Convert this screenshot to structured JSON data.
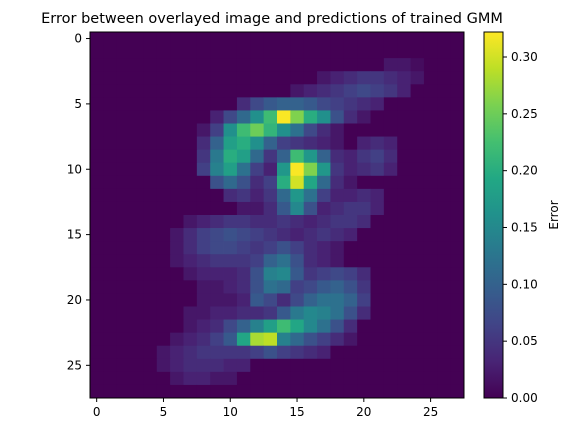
{
  "chart_data": {
    "type": "heatmap",
    "title": "Error between overlayed image and predictions of trained GMM",
    "xlabel": "",
    "ylabel": "",
    "colorbar_label": "Error",
    "colormap": "viridis",
    "grid": false,
    "rows": 28,
    "cols": 28,
    "x_ticks": [
      0,
      5,
      10,
      15,
      20,
      25
    ],
    "y_ticks": [
      0,
      5,
      10,
      15,
      20,
      25
    ],
    "colorbar_ticks": [
      "0.00",
      "0.05",
      "0.10",
      "0.15",
      "0.20",
      "0.25",
      "0.30"
    ],
    "vmin": 0.0,
    "vmax": 0.322,
    "background_value": 0.0,
    "cells": [
      [
        2,
        22,
        0.02
      ],
      [
        2,
        23,
        0.02
      ],
      [
        2,
        24,
        0.01
      ],
      [
        3,
        17,
        0.02
      ],
      [
        3,
        18,
        0.03
      ],
      [
        3,
        19,
        0.04
      ],
      [
        3,
        20,
        0.05
      ],
      [
        3,
        21,
        0.05
      ],
      [
        3,
        22,
        0.04
      ],
      [
        3,
        23,
        0.03
      ],
      [
        3,
        24,
        0.02
      ],
      [
        4,
        15,
        0.02
      ],
      [
        4,
        16,
        0.03
      ],
      [
        4,
        17,
        0.04
      ],
      [
        4,
        18,
        0.05
      ],
      [
        4,
        19,
        0.06
      ],
      [
        4,
        20,
        0.07
      ],
      [
        4,
        21,
        0.06
      ],
      [
        4,
        22,
        0.05
      ],
      [
        4,
        23,
        0.03
      ],
      [
        5,
        11,
        0.04
      ],
      [
        5,
        12,
        0.07
      ],
      [
        5,
        13,
        0.09
      ],
      [
        5,
        14,
        0.1
      ],
      [
        5,
        15,
        0.1
      ],
      [
        5,
        16,
        0.09
      ],
      [
        5,
        17,
        0.07
      ],
      [
        5,
        18,
        0.06
      ],
      [
        5,
        19,
        0.05
      ],
      [
        5,
        20,
        0.04
      ],
      [
        5,
        21,
        0.03
      ],
      [
        6,
        9,
        0.03
      ],
      [
        6,
        10,
        0.07
      ],
      [
        6,
        11,
        0.11
      ],
      [
        6,
        12,
        0.16
      ],
      [
        6,
        13,
        0.22
      ],
      [
        6,
        14,
        0.32
      ],
      [
        6,
        15,
        0.26
      ],
      [
        6,
        16,
        0.2
      ],
      [
        6,
        17,
        0.16
      ],
      [
        6,
        18,
        0.08
      ],
      [
        6,
        19,
        0.04
      ],
      [
        6,
        20,
        0.02
      ],
      [
        7,
        8,
        0.02
      ],
      [
        7,
        9,
        0.06
      ],
      [
        7,
        10,
        0.16
      ],
      [
        7,
        11,
        0.22
      ],
      [
        7,
        12,
        0.25
      ],
      [
        7,
        13,
        0.21
      ],
      [
        7,
        14,
        0.16
      ],
      [
        7,
        15,
        0.12
      ],
      [
        7,
        16,
        0.07
      ],
      [
        7,
        17,
        0.04
      ],
      [
        7,
        18,
        0.02
      ],
      [
        8,
        8,
        0.04
      ],
      [
        8,
        9,
        0.1
      ],
      [
        8,
        10,
        0.18
      ],
      [
        8,
        11,
        0.2
      ],
      [
        8,
        12,
        0.16
      ],
      [
        8,
        13,
        0.1
      ],
      [
        8,
        14,
        0.06
      ],
      [
        8,
        15,
        0.05
      ],
      [
        8,
        16,
        0.04
      ],
      [
        8,
        17,
        0.03
      ],
      [
        8,
        18,
        0.02
      ],
      [
        8,
        20,
        0.03
      ],
      [
        8,
        21,
        0.04
      ],
      [
        8,
        22,
        0.03
      ],
      [
        9,
        8,
        0.05
      ],
      [
        9,
        9,
        0.13
      ],
      [
        9,
        10,
        0.2
      ],
      [
        9,
        11,
        0.18
      ],
      [
        9,
        12,
        0.11
      ],
      [
        9,
        13,
        0.05
      ],
      [
        9,
        14,
        0.1
      ],
      [
        9,
        15,
        0.22
      ],
      [
        9,
        16,
        0.17
      ],
      [
        9,
        17,
        0.1
      ],
      [
        9,
        18,
        0.04
      ],
      [
        9,
        19,
        0.03
      ],
      [
        9,
        20,
        0.05
      ],
      [
        9,
        21,
        0.06
      ],
      [
        9,
        22,
        0.04
      ],
      [
        10,
        8,
        0.06
      ],
      [
        10,
        9,
        0.14
      ],
      [
        10,
        10,
        0.18
      ],
      [
        10,
        11,
        0.12
      ],
      [
        10,
        12,
        0.06
      ],
      [
        10,
        13,
        0.03
      ],
      [
        10,
        14,
        0.17
      ],
      [
        10,
        15,
        0.32
      ],
      [
        10,
        16,
        0.26
      ],
      [
        10,
        17,
        0.17
      ],
      [
        10,
        18,
        0.05
      ],
      [
        10,
        19,
        0.03
      ],
      [
        10,
        20,
        0.04
      ],
      [
        10,
        21,
        0.05
      ],
      [
        10,
        22,
        0.03
      ],
      [
        11,
        9,
        0.08
      ],
      [
        11,
        10,
        0.11
      ],
      [
        11,
        11,
        0.08
      ],
      [
        11,
        12,
        0.04
      ],
      [
        11,
        13,
        0.06
      ],
      [
        11,
        14,
        0.2
      ],
      [
        11,
        15,
        0.3
      ],
      [
        11,
        16,
        0.19
      ],
      [
        11,
        17,
        0.11
      ],
      [
        11,
        18,
        0.04
      ],
      [
        11,
        19,
        0.02
      ],
      [
        12,
        10,
        0.04
      ],
      [
        12,
        11,
        0.05
      ],
      [
        12,
        12,
        0.03
      ],
      [
        12,
        13,
        0.05
      ],
      [
        12,
        14,
        0.11
      ],
      [
        12,
        15,
        0.17
      ],
      [
        12,
        16,
        0.12
      ],
      [
        12,
        17,
        0.06
      ],
      [
        12,
        18,
        0.03
      ],
      [
        12,
        19,
        0.03
      ],
      [
        12,
        20,
        0.04
      ],
      [
        12,
        21,
        0.03
      ],
      [
        13,
        11,
        0.02
      ],
      [
        13,
        12,
        0.02
      ],
      [
        13,
        13,
        0.04
      ],
      [
        13,
        14,
        0.09
      ],
      [
        13,
        15,
        0.15
      ],
      [
        13,
        16,
        0.08
      ],
      [
        13,
        17,
        0.03
      ],
      [
        13,
        18,
        0.04
      ],
      [
        13,
        19,
        0.05
      ],
      [
        13,
        20,
        0.05
      ],
      [
        13,
        21,
        0.03
      ],
      [
        14,
        7,
        0.02
      ],
      [
        14,
        8,
        0.03
      ],
      [
        14,
        9,
        0.04
      ],
      [
        14,
        10,
        0.05
      ],
      [
        14,
        11,
        0.05
      ],
      [
        14,
        12,
        0.04
      ],
      [
        14,
        13,
        0.04
      ],
      [
        14,
        14,
        0.05
      ],
      [
        14,
        15,
        0.04
      ],
      [
        14,
        16,
        0.03
      ],
      [
        14,
        17,
        0.04
      ],
      [
        14,
        18,
        0.05
      ],
      [
        14,
        19,
        0.05
      ],
      [
        14,
        20,
        0.04
      ],
      [
        15,
        6,
        0.02
      ],
      [
        15,
        7,
        0.04
      ],
      [
        15,
        8,
        0.06
      ],
      [
        15,
        9,
        0.07
      ],
      [
        15,
        10,
        0.08
      ],
      [
        15,
        11,
        0.07
      ],
      [
        15,
        12,
        0.06
      ],
      [
        15,
        13,
        0.05
      ],
      [
        15,
        14,
        0.04
      ],
      [
        15,
        15,
        0.03
      ],
      [
        15,
        16,
        0.04
      ],
      [
        15,
        17,
        0.05
      ],
      [
        15,
        18,
        0.04
      ],
      [
        15,
        19,
        0.03
      ],
      [
        16,
        6,
        0.02
      ],
      [
        16,
        7,
        0.04
      ],
      [
        16,
        8,
        0.06
      ],
      [
        16,
        9,
        0.07
      ],
      [
        16,
        10,
        0.07
      ],
      [
        16,
        11,
        0.06
      ],
      [
        16,
        12,
        0.05
      ],
      [
        16,
        13,
        0.06
      ],
      [
        16,
        14,
        0.08
      ],
      [
        16,
        15,
        0.06
      ],
      [
        16,
        16,
        0.04
      ],
      [
        16,
        17,
        0.03
      ],
      [
        16,
        18,
        0.02
      ],
      [
        17,
        6,
        0.02
      ],
      [
        17,
        7,
        0.03
      ],
      [
        17,
        8,
        0.04
      ],
      [
        17,
        9,
        0.05
      ],
      [
        17,
        10,
        0.05
      ],
      [
        17,
        11,
        0.05
      ],
      [
        17,
        12,
        0.06
      ],
      [
        17,
        13,
        0.1
      ],
      [
        17,
        14,
        0.12
      ],
      [
        17,
        15,
        0.08
      ],
      [
        17,
        16,
        0.04
      ],
      [
        17,
        17,
        0.03
      ],
      [
        17,
        18,
        0.02
      ],
      [
        18,
        7,
        0.02
      ],
      [
        18,
        8,
        0.03
      ],
      [
        18,
        9,
        0.03
      ],
      [
        18,
        10,
        0.03
      ],
      [
        18,
        11,
        0.04
      ],
      [
        18,
        12,
        0.08
      ],
      [
        18,
        13,
        0.14
      ],
      [
        18,
        14,
        0.15
      ],
      [
        18,
        15,
        0.09
      ],
      [
        18,
        16,
        0.05
      ],
      [
        18,
        17,
        0.06
      ],
      [
        18,
        18,
        0.07
      ],
      [
        18,
        19,
        0.06
      ],
      [
        18,
        20,
        0.04
      ],
      [
        19,
        8,
        0.02
      ],
      [
        19,
        9,
        0.02
      ],
      [
        19,
        10,
        0.03
      ],
      [
        19,
        11,
        0.04
      ],
      [
        19,
        12,
        0.08
      ],
      [
        19,
        13,
        0.12
      ],
      [
        19,
        14,
        0.11
      ],
      [
        19,
        15,
        0.06
      ],
      [
        19,
        16,
        0.07
      ],
      [
        19,
        17,
        0.09
      ],
      [
        19,
        18,
        0.1
      ],
      [
        19,
        19,
        0.08
      ],
      [
        19,
        20,
        0.05
      ],
      [
        20,
        8,
        0.02
      ],
      [
        20,
        9,
        0.02
      ],
      [
        20,
        10,
        0.02
      ],
      [
        20,
        11,
        0.03
      ],
      [
        20,
        12,
        0.09
      ],
      [
        20,
        13,
        0.07
      ],
      [
        20,
        14,
        0.04
      ],
      [
        20,
        15,
        0.07
      ],
      [
        20,
        16,
        0.1
      ],
      [
        20,
        17,
        0.12
      ],
      [
        20,
        18,
        0.12
      ],
      [
        20,
        19,
        0.1
      ],
      [
        20,
        20,
        0.06
      ],
      [
        21,
        7,
        0.02
      ],
      [
        21,
        8,
        0.02
      ],
      [
        21,
        9,
        0.03
      ],
      [
        21,
        10,
        0.03
      ],
      [
        21,
        11,
        0.04
      ],
      [
        21,
        12,
        0.04
      ],
      [
        21,
        13,
        0.05
      ],
      [
        21,
        14,
        0.09
      ],
      [
        21,
        15,
        0.13
      ],
      [
        21,
        16,
        0.15
      ],
      [
        21,
        17,
        0.14
      ],
      [
        21,
        18,
        0.12
      ],
      [
        21,
        19,
        0.08
      ],
      [
        21,
        20,
        0.04
      ],
      [
        22,
        7,
        0.02
      ],
      [
        22,
        8,
        0.03
      ],
      [
        22,
        9,
        0.04
      ],
      [
        22,
        10,
        0.07
      ],
      [
        22,
        11,
        0.1
      ],
      [
        22,
        12,
        0.14
      ],
      [
        22,
        13,
        0.18
      ],
      [
        22,
        14,
        0.22
      ],
      [
        22,
        15,
        0.19
      ],
      [
        22,
        16,
        0.15
      ],
      [
        22,
        17,
        0.12
      ],
      [
        22,
        18,
        0.08
      ],
      [
        22,
        19,
        0.04
      ],
      [
        23,
        6,
        0.02
      ],
      [
        23,
        7,
        0.03
      ],
      [
        23,
        8,
        0.04
      ],
      [
        23,
        9,
        0.06
      ],
      [
        23,
        10,
        0.09
      ],
      [
        23,
        11,
        0.19
      ],
      [
        23,
        12,
        0.28
      ],
      [
        23,
        13,
        0.29
      ],
      [
        23,
        14,
        0.14
      ],
      [
        23,
        15,
        0.11
      ],
      [
        23,
        16,
        0.08
      ],
      [
        23,
        17,
        0.06
      ],
      [
        23,
        18,
        0.04
      ],
      [
        23,
        19,
        0.02
      ],
      [
        24,
        5,
        0.02
      ],
      [
        24,
        6,
        0.03
      ],
      [
        24,
        7,
        0.04
      ],
      [
        24,
        8,
        0.05
      ],
      [
        24,
        9,
        0.05
      ],
      [
        24,
        10,
        0.05
      ],
      [
        24,
        11,
        0.05
      ],
      [
        24,
        12,
        0.06
      ],
      [
        24,
        13,
        0.08
      ],
      [
        24,
        14,
        0.06
      ],
      [
        24,
        15,
        0.05
      ],
      [
        24,
        16,
        0.04
      ],
      [
        24,
        17,
        0.03
      ],
      [
        25,
        5,
        0.02
      ],
      [
        25,
        6,
        0.03
      ],
      [
        25,
        7,
        0.04
      ],
      [
        25,
        8,
        0.04
      ],
      [
        25,
        9,
        0.04
      ],
      [
        25,
        10,
        0.03
      ],
      [
        25,
        11,
        0.03
      ],
      [
        26,
        6,
        0.02
      ],
      [
        26,
        7,
        0.03
      ],
      [
        26,
        8,
        0.03
      ],
      [
        26,
        9,
        0.02
      ],
      [
        26,
        10,
        0.02
      ]
    ]
  }
}
